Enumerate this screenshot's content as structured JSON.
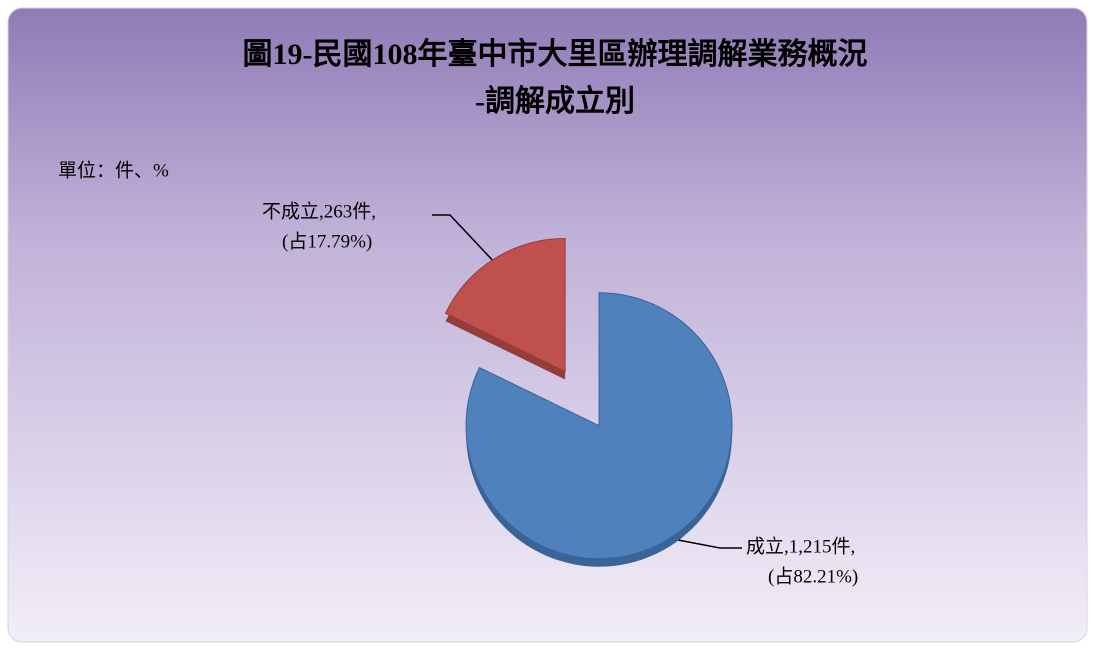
{
  "chart_data": {
    "type": "pie",
    "title": [
      "圖19-民國108年臺中市大里區辦理調解業務概況",
      "-調解成立別"
    ],
    "unit": "單位：件、%",
    "categories": [
      "成立",
      "不成立"
    ],
    "values": [
      1215,
      263
    ],
    "value_labels": [
      "成立,1,215件,",
      "不成立,263件,"
    ],
    "percents": [
      82.21,
      17.79
    ],
    "percent_labels": [
      "(占82.21%)",
      "(占17.79%)"
    ],
    "colors": [
      "#4f81bd",
      "#c0504d"
    ],
    "side_colors": [
      "#3a6397",
      "#963c3a"
    ]
  }
}
